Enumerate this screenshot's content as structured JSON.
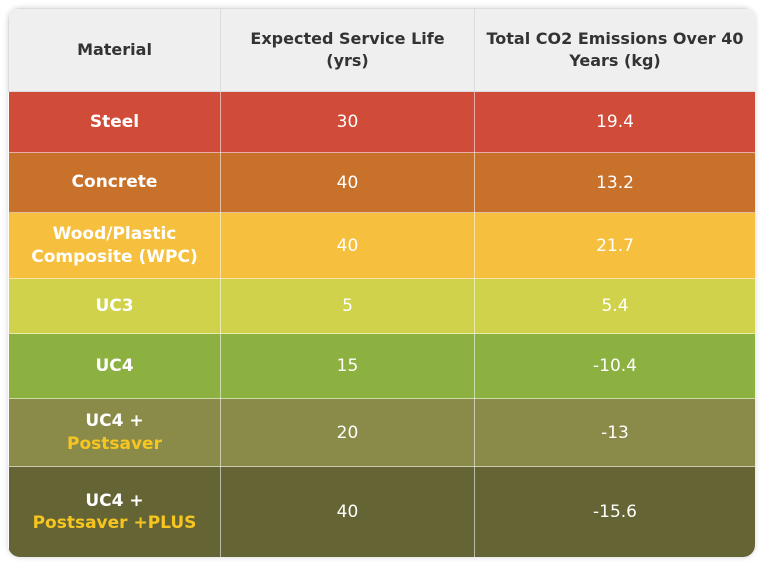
{
  "table": {
    "headers": [
      "Material",
      "Expected Service Life (yrs)",
      "Total CO2 Emissions Over 40 Years (kg)"
    ],
    "rows": [
      {
        "material": "Steel",
        "life": "30",
        "co2": "19.4"
      },
      {
        "material": "Concrete",
        "life": "40",
        "co2": "13.2"
      },
      {
        "material": "Wood/Plastic Composite (WPC)",
        "life": "40",
        "co2": "21.7"
      },
      {
        "material": "UC3",
        "life": "5",
        "co2": "5.4"
      },
      {
        "material": "UC4",
        "life": "15",
        "co2": "-10.4"
      },
      {
        "material": "UC4 +",
        "highlight": "Postsaver",
        "life": "20",
        "co2": "-13"
      },
      {
        "material": "UC4 +",
        "highlight": "Postsaver +PLUS",
        "life": "40",
        "co2": "-15.6"
      }
    ]
  }
}
